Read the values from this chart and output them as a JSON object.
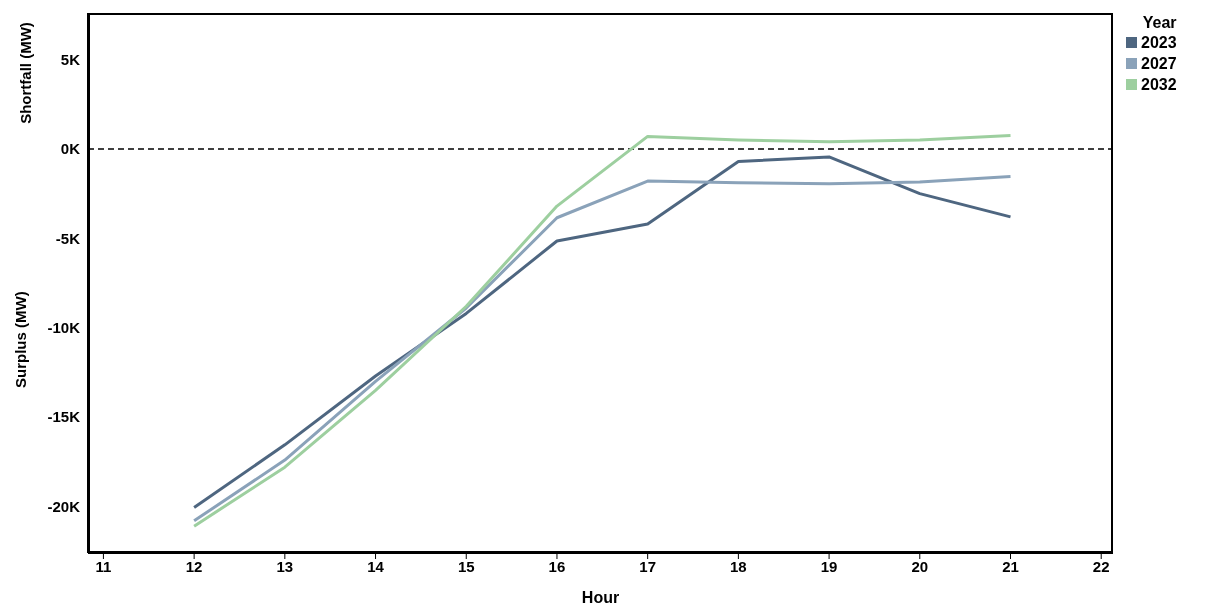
{
  "chart_data": {
    "type": "line",
    "xlabel": "Hour",
    "ylabel": "Shortfall (MW)",
    "annotations": [
      "Surplus (MW)"
    ],
    "legend_title": "Year",
    "legend": "top right",
    "marker": "none",
    "line_style": "solid",
    "x": [
      12,
      13,
      14,
      15,
      16,
      17,
      18,
      19,
      20,
      21
    ],
    "xlim": [
      10.83,
      22.13
    ],
    "xticks": [
      11,
      12,
      13,
      14,
      15,
      16,
      17,
      18,
      19,
      20,
      21,
      22
    ],
    "ylim": [
      -22600,
      7600
    ],
    "yticks": [
      {
        "value": -20000,
        "label": "-20K"
      },
      {
        "value": -15000,
        "label": "-15K"
      },
      {
        "value": -10000,
        "label": "-10K"
      },
      {
        "value": -5000,
        "label": "-5K"
      },
      {
        "value": 0,
        "label": "0K"
      },
      {
        "value": 5000,
        "label": "5K"
      }
    ],
    "ref_lines": [
      {
        "axis": "y",
        "value": 0,
        "color": "#000000",
        "line_style": "dashed"
      }
    ],
    "series": [
      {
        "name": "2023",
        "color": "#4e6680",
        "values": [
          -20050,
          -16550,
          -12700,
          -9200,
          -5150,
          -4200,
          -700,
          -450,
          -2500,
          -3800
        ]
      },
      {
        "name": "2027",
        "color": "#8aa2b9",
        "values": [
          -20800,
          -17400,
          -13000,
          -8900,
          -3850,
          -1800,
          -1900,
          -1950,
          -1850,
          -1550
        ]
      },
      {
        "name": "2032",
        "color": "#9dcf9f",
        "values": [
          -21100,
          -17800,
          -13500,
          -8800,
          -3200,
          700,
          500,
          400,
          500,
          750
        ]
      }
    ]
  }
}
